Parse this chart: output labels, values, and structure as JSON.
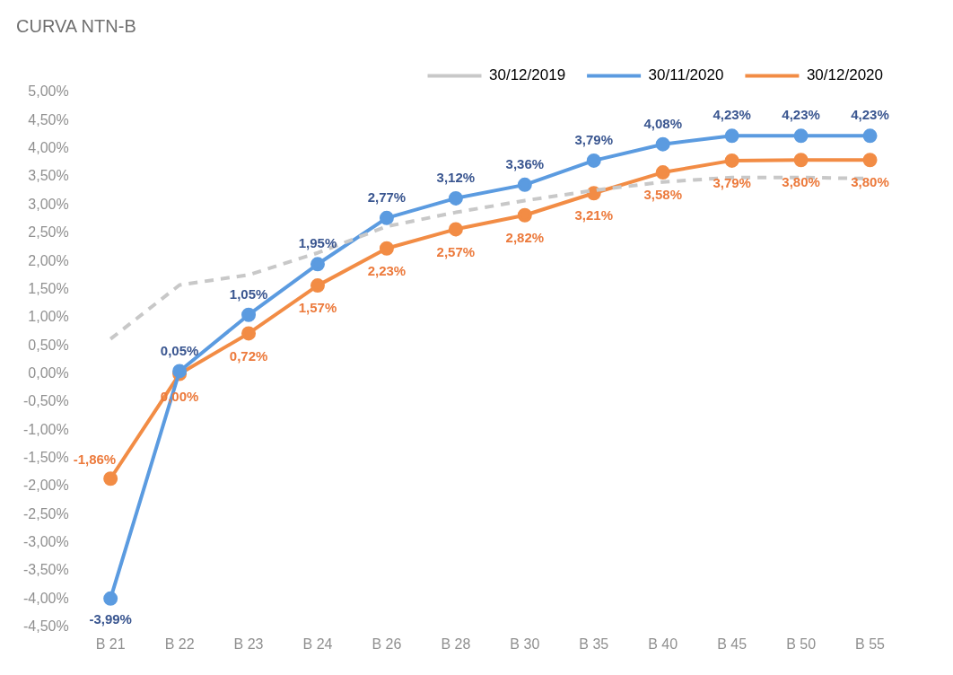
{
  "chart_data": {
    "type": "line",
    "title": "CURVA NTN-B",
    "categories": [
      "B 21",
      "B 22",
      "B 23",
      "B 24",
      "B 26",
      "B 28",
      "B 30",
      "B 35",
      "B 40",
      "B 45",
      "B 50",
      "B 55"
    ],
    "series": [
      {
        "name": "30/12/2019",
        "color": "#c8c8c8",
        "line_style": "dashed",
        "marker": "none",
        "values": [
          0.62,
          1.58,
          1.76,
          2.15,
          2.62,
          2.87,
          3.08,
          3.26,
          3.41,
          3.49,
          3.49,
          3.47
        ]
      },
      {
        "name": "30/11/2020",
        "color": "#5b9be0",
        "line_style": "solid",
        "marker": "circle",
        "values": [
          -3.99,
          0.05,
          1.05,
          1.95,
          2.77,
          3.12,
          3.36,
          3.79,
          4.08,
          4.23,
          4.23,
          4.23
        ],
        "value_labels": [
          "-3,99%",
          "0,05%",
          "1,05%",
          "1,95%",
          "2,77%",
          "3,12%",
          "3,36%",
          "3,79%",
          "4,08%",
          "4,23%",
          "4,23%",
          "4,23%"
        ]
      },
      {
        "name": "30/12/2020",
        "color": "#f28c45",
        "line_style": "solid",
        "marker": "circle",
        "values": [
          -1.86,
          0.0,
          0.72,
          1.57,
          2.23,
          2.57,
          2.82,
          3.21,
          3.58,
          3.79,
          3.8,
          3.8
        ],
        "value_labels": [
          "-1,86%",
          "0,00%",
          "0,72%",
          "1,57%",
          "2,23%",
          "2,57%",
          "2,82%",
          "3,21%",
          "3,58%",
          "3,79%",
          "3,80%",
          "3,80%"
        ]
      }
    ],
    "ylim": [
      -4.5,
      5
    ],
    "yticks": [
      {
        "value": -4.5,
        "label": "-4,50%"
      },
      {
        "value": -4,
        "label": "-4,00%"
      },
      {
        "value": -3.5,
        "label": "-3,50%"
      },
      {
        "value": -3,
        "label": "-3,00%"
      },
      {
        "value": -2.5,
        "label": "-2,50%"
      },
      {
        "value": -2,
        "label": "-2,00%"
      },
      {
        "value": -1.5,
        "label": "-1,50%"
      },
      {
        "value": -1,
        "label": "-1,00%"
      },
      {
        "value": -0.5,
        "label": "-0,50%"
      },
      {
        "value": 0,
        "label": "0,00%"
      },
      {
        "value": 0.5,
        "label": "0,50%"
      },
      {
        "value": 1,
        "label": "1,00%"
      },
      {
        "value": 1.5,
        "label": "1,50%"
      },
      {
        "value": 2,
        "label": "2,00%"
      },
      {
        "value": 2.5,
        "label": "2,50%"
      },
      {
        "value": 3,
        "label": "3,00%"
      },
      {
        "value": 3.5,
        "label": "3,50%"
      },
      {
        "value": 4,
        "label": "4,00%"
      },
      {
        "value": 4.5,
        "label": "4,50%"
      },
      {
        "value": 5,
        "label": "5,00%"
      }
    ],
    "grid": false,
    "legend": "top right"
  }
}
